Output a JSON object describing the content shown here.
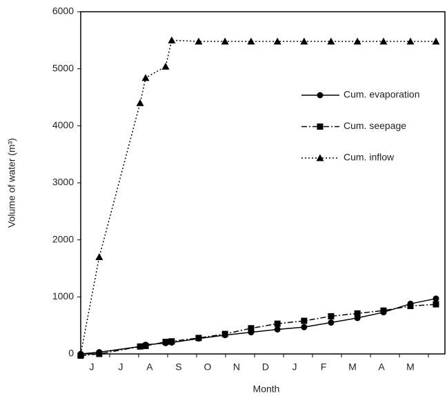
{
  "chart_data": {
    "type": "line",
    "x_label": "Month",
    "y_label": "Volume of water (m³)",
    "categories": [
      "J",
      "J",
      "A",
      "S",
      "O",
      "N",
      "D",
      "J",
      "F",
      "M",
      "A",
      "M"
    ],
    "xlim": [
      0,
      12.57
    ],
    "x": [
      0,
      0.64,
      2.05,
      2.24,
      2.93,
      3.14,
      4.07,
      4.98,
      5.88,
      6.79,
      7.71,
      8.64,
      9.55,
      10.45,
      11.38,
      12.26
    ],
    "ylim": [
      0,
      6000
    ],
    "yticks": [
      0,
      1000,
      2000,
      3000,
      4000,
      5000,
      6000
    ],
    "series": [
      {
        "name": "Cum. evaporation",
        "color": "#000000",
        "line_style": "solid",
        "marker": "circle",
        "values": [
          0,
          30,
          130,
          160,
          190,
          200,
          270,
          330,
          380,
          430,
          470,
          550,
          630,
          730,
          880,
          970
        ]
      },
      {
        "name": "Cum. seepage",
        "color": "#000000",
        "line_style": "dashdot",
        "marker": "square",
        "values": [
          -30,
          0,
          130,
          140,
          210,
          220,
          280,
          350,
          450,
          530,
          580,
          660,
          710,
          760,
          840,
          870
        ]
      },
      {
        "name": "Cum. inflow",
        "color": "#000000",
        "line_style": "dotted",
        "marker": "triangle",
        "values": [
          0,
          1700,
          4400,
          4840,
          5040,
          5500,
          5480,
          5480,
          5480,
          5480,
          5480,
          5480,
          5480,
          5480,
          5480,
          5480
        ]
      }
    ]
  }
}
